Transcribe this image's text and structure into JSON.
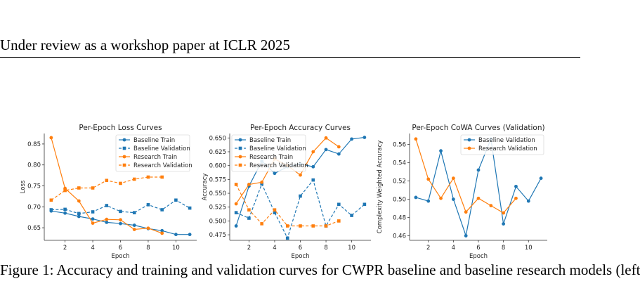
{
  "page": {
    "header": "Under review as a workshop paper at ICLR 2025",
    "caption": "Figure 1: Accuracy and training and validation curves for CWPR baseline and baseline research models (left"
  },
  "chart_data": [
    {
      "type": "line",
      "title": "Per-Epoch Loss Curves",
      "xlabel": "Epoch",
      "ylabel": "Loss",
      "xlim": [
        0.5,
        11.5
      ],
      "ylim": [
        0.62,
        0.875
      ],
      "xticks": [
        2,
        4,
        6,
        8,
        10
      ],
      "yticks": [
        0.65,
        0.7,
        0.75,
        0.8,
        0.85
      ],
      "legend": "top-right",
      "series": [
        {
          "name": "Baseline Train",
          "color": "#1f77b4",
          "dashed": false,
          "marker": "circle",
          "x": [
            1,
            2,
            3,
            4,
            5,
            6,
            7,
            8,
            9,
            10,
            11
          ],
          "y": [
            0.69,
            0.685,
            0.677,
            0.671,
            0.663,
            0.66,
            0.656,
            0.648,
            0.643,
            0.634,
            0.634
          ]
        },
        {
          "name": "Baseline Validation",
          "color": "#1f77b4",
          "dashed": true,
          "marker": "square",
          "x": [
            1,
            2,
            3,
            4,
            5,
            6,
            7,
            8,
            9,
            10,
            11
          ],
          "y": [
            0.693,
            0.694,
            0.684,
            0.688,
            0.703,
            0.689,
            0.686,
            0.705,
            0.693,
            0.716,
            0.697
          ]
        },
        {
          "name": "Research Train",
          "color": "#ff7f0e",
          "dashed": false,
          "marker": "circle",
          "x": [
            1,
            2,
            3,
            4,
            5,
            6,
            7,
            8,
            9
          ],
          "y": [
            0.865,
            0.744,
            0.714,
            0.661,
            0.67,
            0.669,
            0.646,
            0.649,
            0.637
          ]
        },
        {
          "name": "Research Validation",
          "color": "#ff7f0e",
          "dashed": true,
          "marker": "square",
          "x": [
            1,
            2,
            3,
            4,
            5,
            6,
            7,
            8,
            9
          ],
          "y": [
            0.716,
            0.739,
            0.745,
            0.745,
            0.763,
            0.756,
            0.766,
            0.771,
            0.771
          ]
        }
      ]
    },
    {
      "type": "line",
      "title": "Per-Epoch Accuracy Curves",
      "xlabel": "Epoch",
      "ylabel": "Accuracy",
      "xlim": [
        0.5,
        11.5
      ],
      "ylim": [
        0.465,
        0.658
      ],
      "xticks": [
        2,
        4,
        6,
        8,
        10
      ],
      "yticks": [
        0.475,
        0.5,
        0.525,
        0.55,
        0.575,
        0.6,
        0.625,
        0.65
      ],
      "ytick_labels": [
        "0.475",
        "0.500",
        "0.525",
        "0.550",
        "0.575",
        "0.600",
        "0.625",
        "0.650"
      ],
      "legend": "top-left",
      "series": [
        {
          "name": "Baseline Train",
          "color": "#1f77b4",
          "dashed": false,
          "marker": "circle",
          "x": [
            1,
            2,
            3,
            4,
            5,
            6,
            7,
            8,
            9,
            10,
            11
          ],
          "y": [
            0.491,
            0.563,
            0.608,
            0.586,
            0.598,
            0.603,
            0.598,
            0.629,
            0.621,
            0.648,
            0.651
          ]
        },
        {
          "name": "Baseline Validation",
          "color": "#1f77b4",
          "dashed": true,
          "marker": "square",
          "x": [
            1,
            2,
            3,
            4,
            5,
            6,
            7,
            8,
            9,
            10,
            11
          ],
          "y": [
            0.515,
            0.505,
            0.567,
            0.515,
            0.469,
            0.545,
            0.574,
            0.491,
            0.53,
            0.51,
            0.53
          ]
        },
        {
          "name": "Research Train",
          "color": "#ff7f0e",
          "dashed": false,
          "marker": "circle",
          "x": [
            1,
            2,
            3,
            4,
            5,
            6,
            7,
            8,
            9
          ],
          "y": [
            0.531,
            0.566,
            0.57,
            0.612,
            0.6,
            0.583,
            0.625,
            0.65,
            0.634
          ]
        },
        {
          "name": "Research Validation",
          "color": "#ff7f0e",
          "dashed": true,
          "marker": "square",
          "x": [
            1,
            2,
            3,
            4,
            5,
            6,
            7,
            8,
            9
          ],
          "y": [
            0.566,
            0.52,
            0.495,
            0.52,
            0.491,
            0.491,
            0.491,
            0.491,
            0.5
          ]
        }
      ]
    },
    {
      "type": "line",
      "title": "Per-Epoch CoWA Curves (Validation)",
      "xlabel": "Epoch",
      "ylabel": "Complexity Weighted Accuracy",
      "xlim": [
        0.5,
        11.5
      ],
      "ylim": [
        0.455,
        0.572
      ],
      "xticks": [
        2,
        4,
        6,
        8,
        10
      ],
      "yticks": [
        0.46,
        0.48,
        0.5,
        0.52,
        0.54,
        0.56
      ],
      "legend": "top-right",
      "series": [
        {
          "name": "Baseline Validation",
          "color": "#1f77b4",
          "dashed": false,
          "marker": "circle",
          "x": [
            1,
            2,
            3,
            4,
            5,
            6,
            7,
            8,
            9,
            10,
            11
          ],
          "y": [
            0.502,
            0.498,
            0.553,
            0.5,
            0.46,
            0.532,
            0.566,
            0.473,
            0.514,
            0.498,
            0.523
          ]
        },
        {
          "name": "Research Validation",
          "color": "#ff7f0e",
          "dashed": false,
          "marker": "circle",
          "x": [
            1,
            2,
            3,
            4,
            5,
            6,
            7,
            8,
            9
          ],
          "y": [
            0.566,
            0.522,
            0.501,
            0.523,
            0.486,
            0.501,
            0.493,
            0.485,
            0.501
          ]
        }
      ]
    }
  ]
}
